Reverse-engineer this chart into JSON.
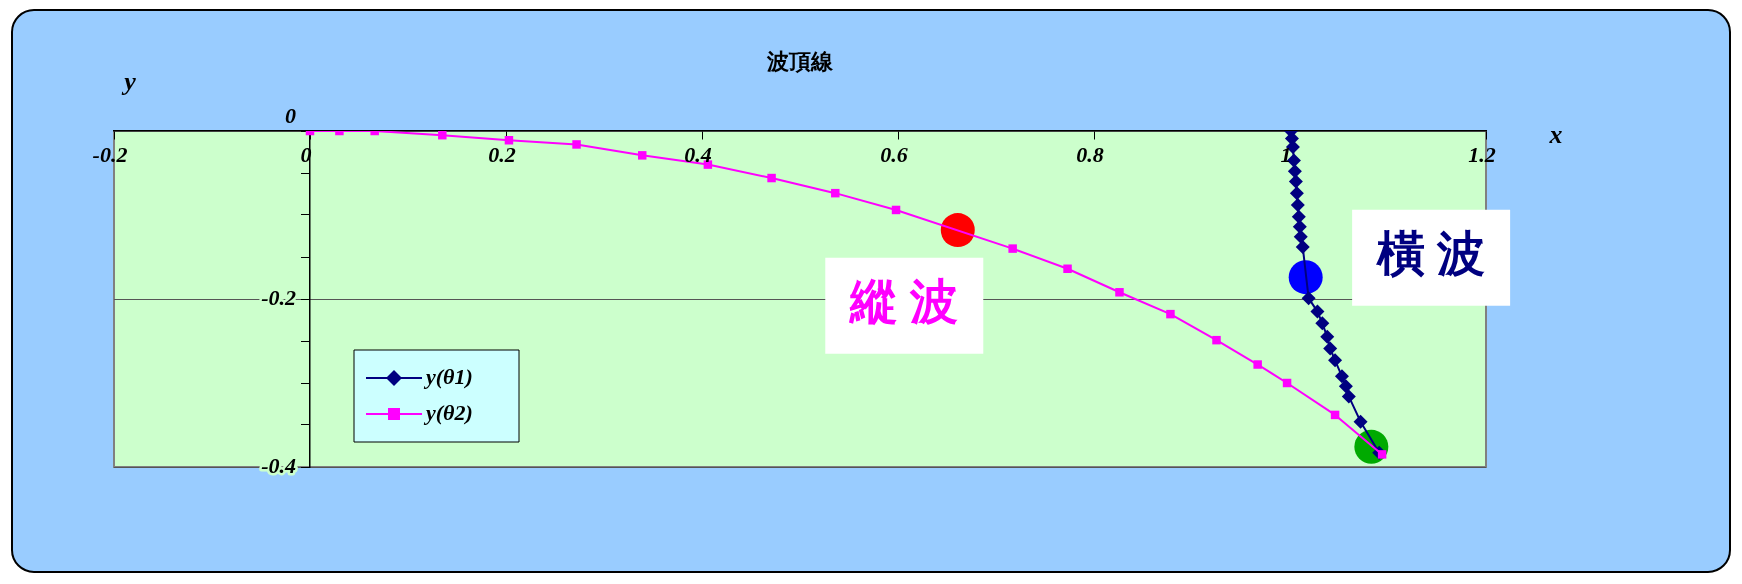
{
  "chart_data": {
    "type": "scatter",
    "title": "波頂線",
    "xlabel": "x",
    "ylabel": "y",
    "xlim": [
      -0.2,
      1.2
    ],
    "xticks": [
      -0.2,
      0,
      0.2,
      0.4,
      0.6,
      0.8,
      1,
      1.2
    ],
    "ylim": [
      -0.4,
      0
    ],
    "yticks": [
      {
        "value": -0.4,
        "label": "-0.4"
      },
      {
        "value": -0.35,
        "label": null
      },
      {
        "value": -0.3,
        "label": null
      },
      {
        "value": -0.25,
        "label": null
      },
      {
        "value": -0.2,
        "label": "-0.2"
      },
      {
        "value": -0.15,
        "label": null
      },
      {
        "value": -0.1,
        "label": null
      },
      {
        "value": -0.05,
        "label": null
      },
      {
        "value": 0,
        "label": "0"
      }
    ],
    "grid": "y",
    "legend": "bottom left",
    "line_style": "solid",
    "annotations": [
      "縱 波",
      "橫 波"
    ],
    "series": [
      {
        "name": "y(θ1)",
        "color": "#000080",
        "type": "line",
        "marker": "diamond",
        "x": [
          1.001,
          1.002,
          1.003,
          1.004,
          1.005,
          1.006,
          1.007,
          1.008,
          1.009,
          1.01,
          1.011,
          1.013,
          1.019,
          1.028,
          1.033,
          1.038,
          1.041,
          1.046,
          1.053,
          1.057,
          1.06,
          1.072,
          1.091
        ],
        "values": [
          0,
          -0.009,
          -0.019,
          -0.035,
          -0.048,
          -0.06,
          -0.074,
          -0.088,
          -0.102,
          -0.114,
          -0.126,
          -0.138,
          -0.199,
          -0.215,
          -0.229,
          -0.245,
          -0.259,
          -0.273,
          -0.292,
          -0.304,
          -0.316,
          -0.346,
          -0.383
        ]
      },
      {
        "name": "y(θ2)",
        "color": "#ff00ff",
        "type": "line",
        "marker": "square",
        "x": [
          0,
          0.03,
          0.066,
          0.135,
          0.203,
          0.272,
          0.339,
          0.406,
          0.471,
          0.536,
          0.598,
          0.717,
          0.773,
          0.826,
          0.878,
          0.925,
          0.967,
          0.997,
          1.046,
          1.094
        ],
        "values": [
          0,
          0,
          0,
          -0.005,
          -0.011,
          -0.016,
          -0.029,
          -0.04,
          -0.056,
          -0.074,
          -0.094,
          -0.14,
          -0.164,
          -0.192,
          -0.218,
          -0.249,
          -0.278,
          -0.3,
          -0.338,
          -0.385
        ]
      },
      {
        "color": "#ff0000",
        "type": "scatter",
        "marker": "circle",
        "x": [
          0.661
        ],
        "values": [
          -0.118
        ]
      },
      {
        "color": "#0000ff",
        "type": "scatter",
        "marker": "circle",
        "x": [
          1.016
        ],
        "values": [
          -0.174
        ]
      },
      {
        "color": "#00aa00",
        "type": "scatter",
        "marker": "circle",
        "x": [
          1.083
        ],
        "values": [
          -0.376
        ]
      }
    ]
  }
}
